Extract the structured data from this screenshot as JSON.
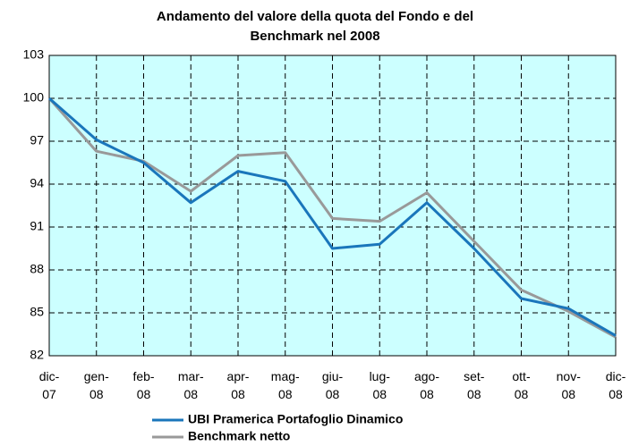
{
  "chart_data": {
    "type": "line",
    "title": "Andamento del valore della quota del Fondo e del Benchmark nel 2008",
    "categories": [
      "dic-07",
      "gen-08",
      "feb-08",
      "mar-08",
      "apr-08",
      "mag-08",
      "giu-08",
      "lug-08",
      "ago-08",
      "set-08",
      "ott-08",
      "nov-08",
      "dic-08"
    ],
    "series": [
      {
        "name": "UBI Pramerica Portafoglio Dinamico",
        "color": "#1a76bb",
        "values": [
          100,
          97.1,
          95.5,
          92.7,
          94.9,
          94.2,
          89.5,
          89.8,
          92.7,
          89.5,
          86.0,
          85.3,
          83.4
        ]
      },
      {
        "name": "Benchmark netto",
        "color": "#999999",
        "values": [
          100,
          96.3,
          95.6,
          93.5,
          96.0,
          96.2,
          91.6,
          91.4,
          93.4,
          90.0,
          86.6,
          85.1,
          83.3
        ]
      }
    ],
    "ylim": [
      82,
      103
    ],
    "yticks": [
      82,
      85,
      88,
      91,
      94,
      97,
      100,
      103
    ],
    "grid": true,
    "plot_background": "#ccffff"
  }
}
